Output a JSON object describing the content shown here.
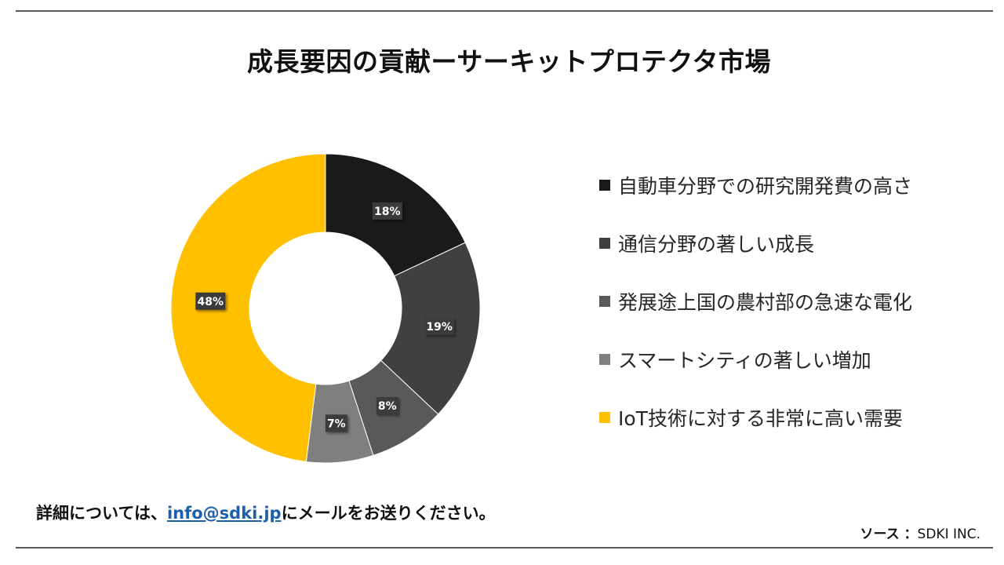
{
  "title": "成長要因の貢献ーサーキットプロテクタ市場",
  "chart_data": {
    "type": "pie",
    "donut": true,
    "categories": [
      "自動車分野での研究開発費の高さ",
      "通信分野の著しい成長",
      "発展途上国の農村部の急速な電化",
      "スマートシティの著しい増加",
      "IoT技術に対する非常に高い需要"
    ],
    "values": [
      18,
      19,
      8,
      7,
      48
    ],
    "data_labels": [
      "18%",
      "19%",
      "8%",
      "7%",
      "48%"
    ],
    "colors": [
      "#1a1a1a",
      "#404040",
      "#595959",
      "#7f7f7f",
      "#ffc000"
    ],
    "legend_position": "right"
  },
  "footer": {
    "note_before": "詳細については、",
    "email": "info@sdki.jp",
    "note_after": "にメールをお送りください。"
  },
  "source": {
    "label": "ソース ：",
    "value": "SDKI INC."
  }
}
